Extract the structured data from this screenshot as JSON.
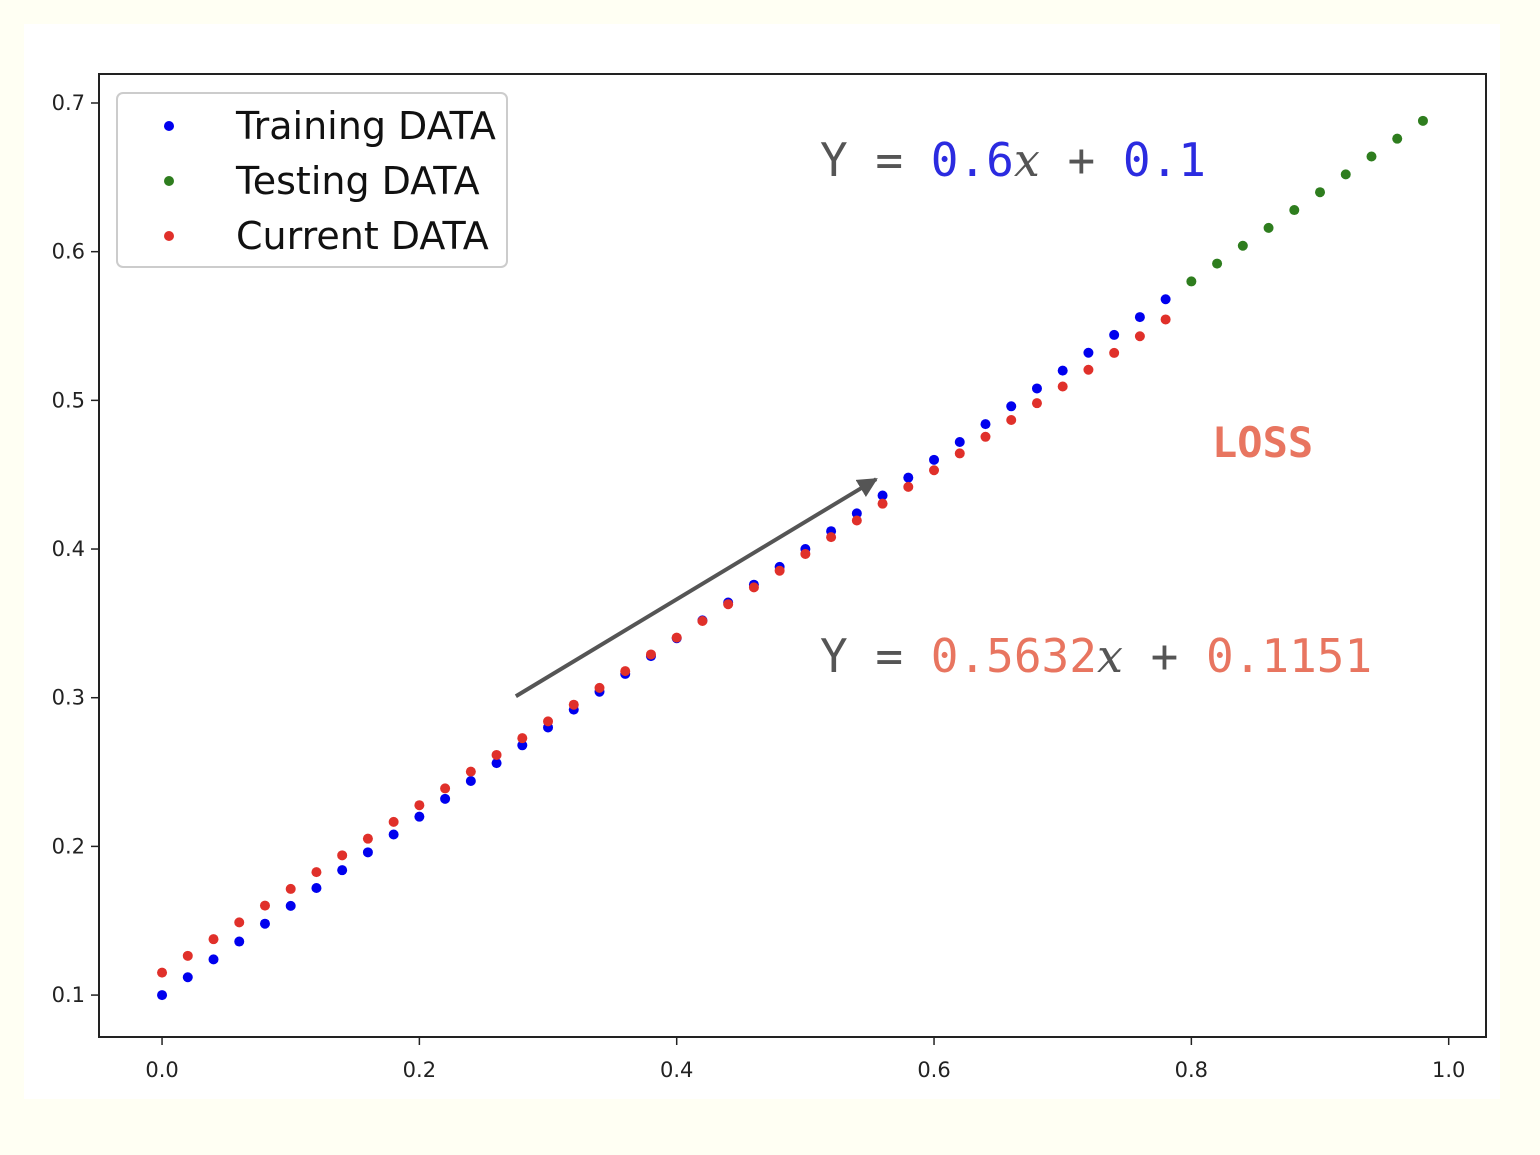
{
  "chart_data": {
    "type": "scatter",
    "xlim": [
      -0.049,
      1.029
    ],
    "ylim": [
      0.0718,
      0.7195
    ],
    "x_ticks": [
      "0.0",
      "0.2",
      "0.4",
      "0.6",
      "0.8",
      "1.0"
    ],
    "y_ticks": [
      "0.1",
      "0.2",
      "0.3",
      "0.4",
      "0.5",
      "0.6",
      "0.7"
    ],
    "grid": false,
    "legend_position": "top-left",
    "series": [
      {
        "name": "Training DATA",
        "color": "#0000ee",
        "x": [
          0.0,
          0.02,
          0.04,
          0.06,
          0.08,
          0.1,
          0.12,
          0.14,
          0.16,
          0.18,
          0.2,
          0.22,
          0.24,
          0.26,
          0.28,
          0.3,
          0.32,
          0.34,
          0.36,
          0.38,
          0.4,
          0.42,
          0.44,
          0.46,
          0.48,
          0.5,
          0.52,
          0.54,
          0.56,
          0.58,
          0.6,
          0.62,
          0.64,
          0.66,
          0.68,
          0.7,
          0.72,
          0.74,
          0.76,
          0.78
        ],
        "y": [
          0.1,
          0.112,
          0.124,
          0.136,
          0.148,
          0.16,
          0.172,
          0.184,
          0.196,
          0.208,
          0.22,
          0.232,
          0.244,
          0.256,
          0.268,
          0.28,
          0.292,
          0.304,
          0.316,
          0.328,
          0.34,
          0.352,
          0.364,
          0.376,
          0.388,
          0.4,
          0.412,
          0.424,
          0.436,
          0.448,
          0.46,
          0.472,
          0.484,
          0.496,
          0.508,
          0.52,
          0.532,
          0.544,
          0.556,
          0.568
        ]
      },
      {
        "name": "Testing DATA",
        "color": "#2e7d1e",
        "x": [
          0.8,
          0.82,
          0.84,
          0.86,
          0.88,
          0.9,
          0.92,
          0.94,
          0.96,
          0.98
        ],
        "y": [
          0.58,
          0.592,
          0.604,
          0.616,
          0.628,
          0.64,
          0.652,
          0.664,
          0.676,
          0.688
        ]
      },
      {
        "name": "Current DATA",
        "color": "#e0302a",
        "x": [
          0.0,
          0.02,
          0.04,
          0.06,
          0.08,
          0.1,
          0.12,
          0.14,
          0.16,
          0.18,
          0.2,
          0.22,
          0.24,
          0.26,
          0.28,
          0.3,
          0.32,
          0.34,
          0.36,
          0.38,
          0.4,
          0.42,
          0.44,
          0.46,
          0.48,
          0.5,
          0.52,
          0.54,
          0.56,
          0.58,
          0.6,
          0.62,
          0.64,
          0.66,
          0.68,
          0.7,
          0.72,
          0.74,
          0.76,
          0.78
        ],
        "y": [
          0.1151,
          0.1264,
          0.1376,
          0.1489,
          0.1602,
          0.1714,
          0.1827,
          0.194,
          0.2052,
          0.2165,
          0.2277,
          0.239,
          0.2503,
          0.2615,
          0.2728,
          0.2841,
          0.2953,
          0.3066,
          0.3179,
          0.3291,
          0.3404,
          0.3516,
          0.3629,
          0.3742,
          0.3854,
          0.3967,
          0.408,
          0.4192,
          0.4305,
          0.4418,
          0.453,
          0.4643,
          0.4755,
          0.4868,
          0.4981,
          0.5093,
          0.5206,
          0.5319,
          0.5431,
          0.5544
        ]
      }
    ],
    "annotations": {
      "target_eq": {
        "prefix": "Y = ",
        "slope": "0.6",
        "var": "x",
        "plus": " + ",
        "intercept": "0.1",
        "color": "#2b2be0"
      },
      "current_eq": {
        "prefix": "Y = ",
        "slope": "0.5632",
        "var": "x",
        "plus": " + ",
        "intercept": "0.1151",
        "color": "#e87560"
      },
      "loss_label": {
        "text": "LOSS",
        "color": "#e87560"
      },
      "arrow": {
        "from": [
          0.275,
          0.301
        ],
        "to": [
          0.555,
          0.447
        ],
        "color": "#555555"
      }
    }
  }
}
